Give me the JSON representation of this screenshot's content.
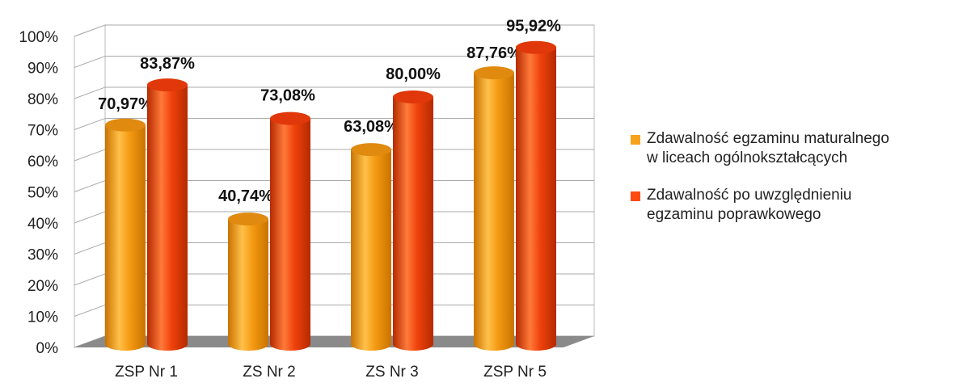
{
  "chart_data": {
    "type": "bar",
    "style": "3d-cylinder",
    "categories": [
      "ZSP Nr 1",
      "ZS Nr 2",
      "ZS Nr 3",
      "ZSP Nr 5"
    ],
    "series": [
      {
        "name": "Zdawalność egzaminu maturalnego\nw liceach ogólnokształcących",
        "values": [
          70.97,
          40.74,
          63.08,
          87.76
        ],
        "labels": [
          "70,97%",
          "40,74%",
          "63,08%",
          "87,76%"
        ],
        "color": "#f7a21b"
      },
      {
        "name": "Zdawalność po uwzględnieniu\negzaminu poprawkowego",
        "values": [
          83.87,
          73.08,
          80.0,
          95.92
        ],
        "labels": [
          "83,87%",
          "73,08%",
          "80,00%",
          "95,92%"
        ],
        "color": "#ff4a12"
      }
    ],
    "y_ticks": [
      "0%",
      "10%",
      "20%",
      "30%",
      "40%",
      "50%",
      "60%",
      "70%",
      "80%",
      "90%",
      "100%"
    ],
    "ylim": [
      0,
      100
    ],
    "grid": true,
    "legend_position": "right",
    "floor_color": "#8a8a8a"
  }
}
